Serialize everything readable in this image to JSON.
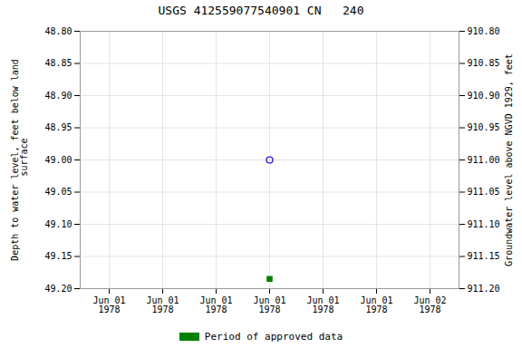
{
  "chart_data": {
    "type": "scatter",
    "title": "USGS 412559077540901 CN   240",
    "ylabel": "Depth to water level, feet below land\n surface",
    "y2label": "Groundwater level above NGVD 1929, feet",
    "categories": [
      "Jun 01\n1978",
      "Jun 01\n1978",
      "Jun 01\n1978",
      "Jun 01\n1978",
      "Jun 01\n1978",
      "Jun 01\n1978",
      "Jun 02\n1978"
    ],
    "ylim": [
      49.2,
      48.8
    ],
    "yticks": [
      {
        "value": 48.8,
        "label": "48.80"
      },
      48.85,
      {
        "value": 48.9,
        "label": "48.90"
      },
      48.95,
      {
        "value": 49.0,
        "label": "49.00"
      },
      49.05,
      {
        "value": 49.1,
        "label": "49.10"
      },
      49.15,
      {
        "value": 49.2,
        "label": "49.20"
      }
    ],
    "y2lim": [
      911.2,
      910.8
    ],
    "y2ticks": [
      {
        "value": 911.2,
        "label": "911.20"
      },
      911.15,
      {
        "value": 911.1,
        "label": "911.10"
      },
      911.05,
      {
        "value": 911.0,
        "label": "911.00"
      },
      910.95,
      {
        "value": 910.9,
        "label": "910.90"
      },
      910.85,
      {
        "value": 910.8,
        "label": "910.80"
      }
    ],
    "grid": true,
    "legend": "bottom",
    "series": [
      {
        "color": "#0000cc",
        "marker": "circle_open",
        "values": [
          null,
          null,
          null,
          49.0,
          null,
          null,
          null
        ]
      },
      {
        "name": "Period of approved data",
        "color": "#008000",
        "marker": "square",
        "values": [
          null,
          null,
          null,
          49.185,
          null,
          null,
          null
        ]
      }
    ]
  }
}
